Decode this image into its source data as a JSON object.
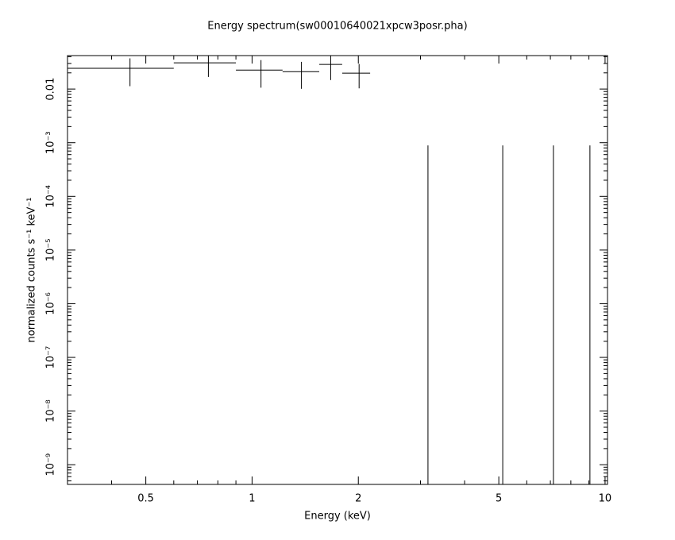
{
  "chart_data": {
    "type": "errorbar",
    "title": "Energy spectrum(sw00010640021xpcw3posr.pha)",
    "xlabel": "Energy (keV)",
    "ylabel": "normalized counts s⁻¹ keV⁻¹",
    "x": [
      0.451,
      0.752,
      1.06,
      1.38,
      1.67,
      2.01,
      3.15,
      5.13,
      7.14,
      9.06
    ],
    "x_low": [
      0.3,
      0.6,
      0.9,
      1.22,
      1.55,
      1.8,
      null,
      null,
      null,
      null
    ],
    "x_high": [
      0.6,
      0.9,
      1.22,
      1.55,
      1.8,
      2.16,
      null,
      null,
      null,
      null
    ],
    "values": [
      0.0243,
      0.0308,
      0.0226,
      0.0211,
      0.0287,
      0.0198,
      0,
      0,
      0,
      0
    ],
    "yerr": [
      0.013,
      0.014,
      0.012,
      0.011,
      0.014,
      0.0095,
      0.00089,
      0.00089,
      0.00089,
      0.00089
    ],
    "color": "#000000",
    "xscale": "log",
    "yscale": "log",
    "minor_ticks": true,
    "xlim": [
      0.3,
      10.16
    ],
    "ylim": [
      4.3e-10,
      0.042
    ],
    "xticks": [
      0.5,
      1,
      2,
      5,
      10
    ],
    "yticks": [
      0.01,
      {
        "value": 0.001,
        "label": "10⁻³"
      },
      {
        "value": 0.0001,
        "label": "10⁻⁴"
      },
      {
        "value": 1e-05,
        "label": "10⁻⁵"
      },
      {
        "value": 1e-06,
        "label": "10⁻⁶"
      },
      {
        "value": 1e-07,
        "label": "10⁻⁷"
      },
      {
        "value": 1e-08,
        "label": "10⁻⁸"
      },
      {
        "value": 1e-09,
        "label": "10⁻⁹"
      }
    ]
  }
}
